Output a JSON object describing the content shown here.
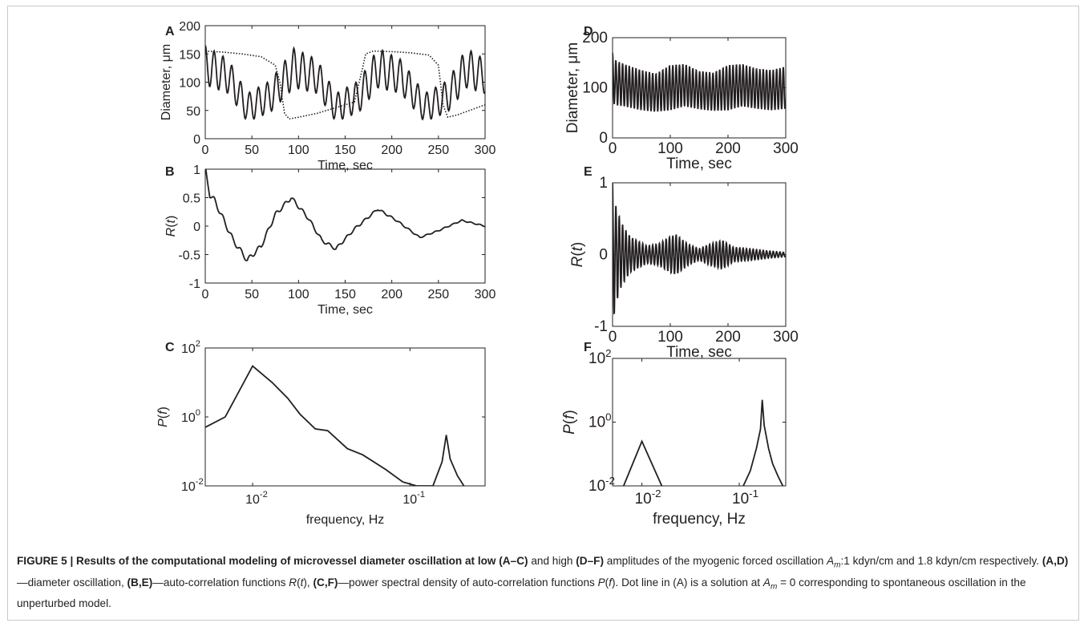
{
  "figure": {
    "panels": [
      {
        "id": "A",
        "label": "A",
        "ylabel": "Diameter, μm",
        "xlabel": "Time, sec"
      },
      {
        "id": "B",
        "label": "B",
        "ylabel": "R(t)",
        "xlabel": "Time, sec"
      },
      {
        "id": "C",
        "label": "C",
        "ylabel": "P(f)",
        "xlabel": "frequency, Hz"
      },
      {
        "id": "D",
        "label": "D",
        "ylabel": "Diameter, μm",
        "xlabel": "Time, sec"
      },
      {
        "id": "E",
        "label": "E",
        "ylabel": "R(t)",
        "xlabel": "Time, sec"
      },
      {
        "id": "F",
        "label": "F",
        "ylabel": "P(f)",
        "xlabel": "frequency, Hz"
      }
    ]
  },
  "chart_data": [
    {
      "panel": "A",
      "type": "line",
      "xlabel": "Time, sec",
      "ylabel": "Diameter, μm",
      "xlim": [
        0,
        300
      ],
      "ylim": [
        0,
        200
      ],
      "xticks": [
        "0",
        "50",
        "100",
        "150",
        "200",
        "250",
        "300"
      ],
      "yticks": [
        "0",
        "50",
        "100",
        "150",
        "200"
      ],
      "series": [
        {
          "style": "solid",
          "description_values": {
            "fast_period_s": 9.5,
            "envelope": "slow 93 s modulation",
            "x": [
              0,
              25,
              45,
              70,
              95,
              120,
              140,
              165,
              185,
              210,
              235,
              260,
              280,
              300
            ],
            "y_mid": [
              130,
              110,
              55,
              75,
              125,
              110,
              55,
              75,
              125,
              110,
              55,
              75,
              125,
              110
            ],
            "amp": [
              35,
              30,
              25,
              28,
              35,
              30,
              25,
              28,
              35,
              30,
              25,
              28,
              35,
              30
            ]
          }
        },
        {
          "style": "dotted",
          "x": [
            0,
            20,
            40,
            60,
            75,
            80,
            85,
            90,
            100,
            120,
            140,
            160,
            168,
            172,
            180,
            200,
            220,
            240,
            250,
            255,
            260,
            270,
            300
          ],
          "y": [
            155,
            153,
            150,
            145,
            130,
            100,
            45,
            35,
            38,
            45,
            55,
            65,
            120,
            150,
            155,
            154,
            152,
            148,
            130,
            60,
            38,
            42,
            60
          ]
        }
      ]
    },
    {
      "panel": "B",
      "type": "line",
      "xlabel": "Time, sec",
      "ylabel": "R(t)",
      "xlim": [
        0,
        300
      ],
      "ylim": [
        -1,
        1
      ],
      "xticks": [
        "0",
        "50",
        "100",
        "150",
        "200",
        "250",
        "300"
      ],
      "yticks": [
        "-1",
        "-0.5",
        "0",
        "0.5",
        "1"
      ],
      "series": [
        {
          "x": [
            0,
            5,
            10,
            20,
            30,
            45,
            60,
            75,
            92,
            110,
            125,
            140,
            160,
            185,
            205,
            230,
            250,
            275,
            300
          ],
          "y": [
            1,
            0.55,
            0.45,
            0.1,
            -0.25,
            -0.6,
            -0.35,
            0.2,
            0.5,
            0.15,
            -0.25,
            -0.4,
            -0.05,
            0.3,
            0.1,
            -0.2,
            -0.08,
            0.1,
            0.0
          ]
        }
      ]
    },
    {
      "panel": "C",
      "type": "line",
      "scale": "log-log",
      "xlabel": "frequency, Hz",
      "ylabel": "P(f)",
      "xlim": [
        0.005,
        0.3
      ],
      "ylim": [
        0.01,
        100
      ],
      "xticks": [
        "10^-2",
        "10^-1"
      ],
      "yticks": [
        "10^-2",
        "10^0",
        "10^2"
      ],
      "series": [
        {
          "x": [
            0.005,
            0.0067,
            0.01,
            0.0133,
            0.0167,
            0.02,
            0.025,
            0.03,
            0.04,
            0.05,
            0.07,
            0.09,
            0.11,
            0.14,
            0.16,
            0.17,
            0.18,
            0.2,
            0.22
          ],
          "y": [
            0.5,
            1.0,
            30,
            10,
            3.5,
            1.2,
            0.45,
            0.4,
            0.12,
            0.08,
            0.03,
            0.013,
            0.01,
            0.01,
            0.05,
            0.3,
            0.06,
            0.02,
            0.01
          ]
        }
      ]
    },
    {
      "panel": "D",
      "type": "line",
      "xlabel": "Time, sec",
      "ylabel": "Diameter, μm",
      "xlim": [
        0,
        300
      ],
      "ylim": [
        0,
        200
      ],
      "xticks": [
        "0",
        "100",
        "200",
        "300"
      ],
      "yticks": [
        "0",
        "100",
        "200"
      ],
      "series": [
        {
          "fast_period_s": 5.8,
          "x": [
            0,
            5,
            20,
            50,
            75,
            100,
            125,
            150,
            175,
            200,
            225,
            250,
            275,
            300
          ],
          "y_mid": [
            120,
            110,
            105,
            95,
            90,
            100,
            105,
            95,
            92,
            100,
            105,
            98,
            95,
            100
          ],
          "amp": [
            50,
            45,
            42,
            40,
            38,
            45,
            42,
            38,
            38,
            45,
            42,
            40,
            40,
            42
          ]
        }
      ]
    },
    {
      "panel": "E",
      "type": "line",
      "xlabel": "Time, sec",
      "ylabel": "R(t)",
      "xlim": [
        0,
        300
      ],
      "ylim": [
        -1,
        1
      ],
      "xticks": [
        "0",
        "100",
        "200",
        "300"
      ],
      "yticks": [
        "-1",
        "0",
        "1"
      ],
      "series": [
        {
          "fast_period_s": 5.8,
          "x": [
            0,
            5,
            15,
            30,
            60,
            80,
            100,
            110,
            130,
            150,
            170,
            190,
            210,
            240,
            270,
            300
          ],
          "amp": [
            1.0,
            0.7,
            0.45,
            0.25,
            0.12,
            0.15,
            0.25,
            0.28,
            0.15,
            0.08,
            0.15,
            0.2,
            0.1,
            0.08,
            0.05,
            0.03
          ]
        }
      ]
    },
    {
      "panel": "F",
      "type": "line",
      "scale": "log-log",
      "xlabel": "frequency, Hz",
      "ylabel": "P(f)",
      "xlim": [
        0.005,
        0.3
      ],
      "ylim": [
        0.01,
        100
      ],
      "xticks": [
        "10^-2",
        "10^-1"
      ],
      "yticks": [
        "10^-2",
        "10^0",
        "10^2"
      ],
      "series": [
        {
          "x": [
            0.0065,
            0.01,
            0.016
          ],
          "y": [
            0.01,
            0.25,
            0.01
          ]
        },
        {
          "x": [
            0.11,
            0.13,
            0.15,
            0.165,
            0.172,
            0.18,
            0.2,
            0.22,
            0.25,
            0.28
          ],
          "y": [
            0.01,
            0.03,
            0.15,
            0.6,
            5,
            0.8,
            0.15,
            0.05,
            0.02,
            0.01
          ]
        }
      ]
    }
  ],
  "caption": {
    "bold_lead": "FIGURE 5 | Results of the computational modeling of microvessel diameter oscillation at low (A–C)",
    "t1": " and high ",
    "b1": "(D–F)",
    "t2": " amplitudes of the myogenic forced oscillation ",
    "am1": "A",
    "am1_sub": "m",
    "t3": ":1 kdyn/cm and 1.8 kdyn/cm respectively. ",
    "b2": "(A,D)",
    "t4": "—diameter oscillation, ",
    "b3": "(B,E)",
    "t5": "—auto-correlation functions ",
    "r_it": "R",
    "t6": "(",
    "t_it": "t",
    "t7": "), ",
    "b4": "(C,F)",
    "t8": "—power spectral density of auto-correlation functions ",
    "p_it": "P",
    "t9": "(",
    "f_it": "f",
    "t10": "). Dot line in (A) is a solution at ",
    "am2": "A",
    "am2_sub": "m",
    "t11": " = 0 corresponding to spontaneous oscillation in the unperturbed model."
  }
}
